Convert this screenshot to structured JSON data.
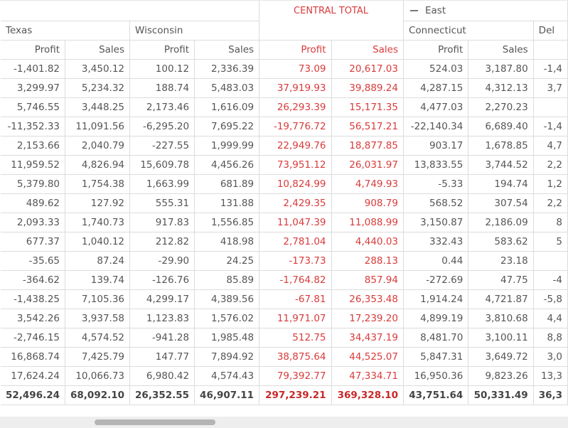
{
  "pivot": {
    "group_headers": {
      "central_total": "CENTRAL TOTAL",
      "east": "East",
      "east_collapse_icon": "minus-collapse-icon"
    },
    "state_headers": [
      "Texas",
      "Wisconsin",
      "Connecticut",
      "Del"
    ],
    "measure_headers": {
      "texas_profit": "Profit",
      "texas_sales": "Sales",
      "wisconsin_profit": "Profit",
      "wisconsin_sales": "Sales",
      "central_profit": "Profit",
      "central_sales": "Sales",
      "connecticut_profit": "Profit",
      "connecticut_sales": "Sales"
    },
    "rows": [
      {
        "tx_p": "-1,401.82",
        "tx_s": "3,450.12",
        "wi_p": "100.12",
        "wi_s": "2,336.39",
        "ct_p": "73.09",
        "ct_s": "20,617.03",
        "cn_p": "524.03",
        "cn_s": "3,187.80",
        "de": "-1,4"
      },
      {
        "tx_p": "3,299.97",
        "tx_s": "5,234.32",
        "wi_p": "188.74",
        "wi_s": "5,483.03",
        "ct_p": "37,919.93",
        "ct_s": "39,889.24",
        "cn_p": "4,287.15",
        "cn_s": "4,312.13",
        "de": "3,7"
      },
      {
        "tx_p": "5,746.55",
        "tx_s": "3,448.25",
        "wi_p": "2,173.46",
        "wi_s": "1,616.09",
        "ct_p": "26,293.39",
        "ct_s": "15,171.35",
        "cn_p": "4,477.03",
        "cn_s": "2,270.23",
        "de": ""
      },
      {
        "tx_p": "-11,352.33",
        "tx_s": "11,091.56",
        "wi_p": "-6,295.20",
        "wi_s": "7,695.22",
        "ct_p": "-19,776.72",
        "ct_s": "56,517.21",
        "cn_p": "-22,140.34",
        "cn_s": "6,689.40",
        "de": "-1,4"
      },
      {
        "tx_p": "2,153.66",
        "tx_s": "2,040.79",
        "wi_p": "-227.55",
        "wi_s": "1,999.99",
        "ct_p": "22,949.76",
        "ct_s": "18,877.85",
        "cn_p": "903.17",
        "cn_s": "1,678.85",
        "de": "4,7"
      },
      {
        "tx_p": "11,959.52",
        "tx_s": "4,826.94",
        "wi_p": "15,609.78",
        "wi_s": "4,456.26",
        "ct_p": "73,951.12",
        "ct_s": "26,031.97",
        "cn_p": "13,833.55",
        "cn_s": "3,744.52",
        "de": "2,2"
      },
      {
        "tx_p": "5,379.80",
        "tx_s": "1,754.38",
        "wi_p": "1,663.99",
        "wi_s": "681.89",
        "ct_p": "10,824.99",
        "ct_s": "4,749.93",
        "cn_p": "-5.33",
        "cn_s": "194.74",
        "de": "1,2"
      },
      {
        "tx_p": "489.62",
        "tx_s": "127.92",
        "wi_p": "555.31",
        "wi_s": "131.88",
        "ct_p": "2,429.35",
        "ct_s": "908.79",
        "cn_p": "568.52",
        "cn_s": "307.54",
        "de": "2,2"
      },
      {
        "tx_p": "2,093.33",
        "tx_s": "1,740.73",
        "wi_p": "917.83",
        "wi_s": "1,556.85",
        "ct_p": "11,047.39",
        "ct_s": "11,088.99",
        "cn_p": "3,150.87",
        "cn_s": "2,186.09",
        "de": "8"
      },
      {
        "tx_p": "677.37",
        "tx_s": "1,040.12",
        "wi_p": "212.82",
        "wi_s": "418.98",
        "ct_p": "2,781.04",
        "ct_s": "4,440.03",
        "cn_p": "332.43",
        "cn_s": "583.62",
        "de": "5"
      },
      {
        "tx_p": "-35.65",
        "tx_s": "87.24",
        "wi_p": "-29.90",
        "wi_s": "24.25",
        "ct_p": "-173.73",
        "ct_s": "288.13",
        "cn_p": "0.44",
        "cn_s": "23.18",
        "de": ""
      },
      {
        "tx_p": "-364.62",
        "tx_s": "139.74",
        "wi_p": "-126.76",
        "wi_s": "85.89",
        "ct_p": "-1,764.82",
        "ct_s": "857.94",
        "cn_p": "-272.69",
        "cn_s": "47.75",
        "de": "-4"
      },
      {
        "tx_p": "-1,438.25",
        "tx_s": "7,105.36",
        "wi_p": "4,299.17",
        "wi_s": "4,389.56",
        "ct_p": "-67.81",
        "ct_s": "26,353.48",
        "cn_p": "1,914.24",
        "cn_s": "4,721.87",
        "de": "-5,8"
      },
      {
        "tx_p": "3,542.26",
        "tx_s": "3,937.58",
        "wi_p": "1,123.83",
        "wi_s": "1,576.02",
        "ct_p": "11,971.07",
        "ct_s": "17,239.20",
        "cn_p": "4,899.19",
        "cn_s": "3,810.68",
        "de": "4,4"
      },
      {
        "tx_p": "-2,746.15",
        "tx_s": "4,574.52",
        "wi_p": "-941.28",
        "wi_s": "1,985.48",
        "ct_p": "512.75",
        "ct_s": "34,437.19",
        "cn_p": "8,481.70",
        "cn_s": "3,100.11",
        "de": "8,8"
      },
      {
        "tx_p": "16,868.74",
        "tx_s": "7,425.79",
        "wi_p": "147.77",
        "wi_s": "7,894.92",
        "ct_p": "38,875.64",
        "ct_s": "44,525.07",
        "cn_p": "5,847.31",
        "cn_s": "3,649.72",
        "de": "3,0"
      },
      {
        "tx_p": "17,624.24",
        "tx_s": "10,066.73",
        "wi_p": "6,980.42",
        "wi_s": "4,574.43",
        "ct_p": "79,392.77",
        "ct_s": "47,334.71",
        "cn_p": "16,950.36",
        "cn_s": "9,823.26",
        "de": "13,3"
      }
    ],
    "totals": {
      "tx_p": "52,496.24",
      "tx_s": "68,092.10",
      "wi_p": "26,352.55",
      "wi_s": "46,907.11",
      "ct_p": "297,239.21",
      "ct_s": "369,328.10",
      "cn_p": "43,751.64",
      "cn_s": "50,331.49",
      "de": "36,3"
    },
    "colors": {
      "accent_red": "#d93b3b",
      "text": "#555555",
      "grid": "#dcdcdc",
      "scroll_thumb": "#b4b4b4"
    }
  },
  "scrollbar": {
    "orientation": "horizontal"
  }
}
